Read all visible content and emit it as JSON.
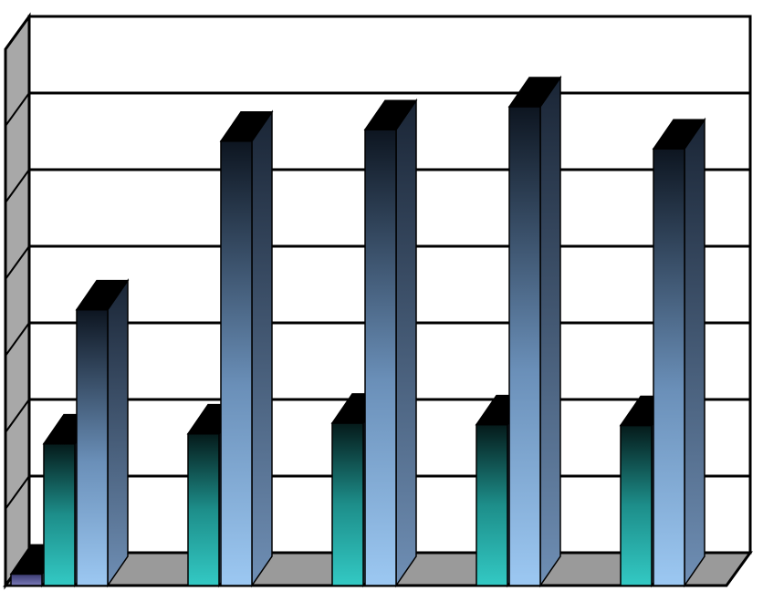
{
  "chart_data": {
    "type": "bar",
    "title": "",
    "xlabel": "",
    "ylabel": "",
    "categories": [
      "",
      "",
      "",
      "",
      ""
    ],
    "ylim": [
      0,
      7
    ],
    "grid": true,
    "legend": "none",
    "series": [
      {
        "values": [
          0.15,
          0,
          0,
          0,
          0
        ],
        "color": "#6f6fa8"
      },
      {
        "values": [
          1.85,
          1.98,
          2.12,
          2.1,
          2.09
        ],
        "color": "#2fc4c0"
      },
      {
        "values": [
          3.6,
          5.8,
          5.95,
          6.25,
          5.7
        ],
        "color": "#9cc8f2"
      }
    ],
    "colors": {
      "wall": "#ffffff",
      "floor": "#9a9a9a",
      "side_wall": "#a8a8a8",
      "bar_top": "#000000",
      "bar_dark": "#0d1520"
    }
  }
}
